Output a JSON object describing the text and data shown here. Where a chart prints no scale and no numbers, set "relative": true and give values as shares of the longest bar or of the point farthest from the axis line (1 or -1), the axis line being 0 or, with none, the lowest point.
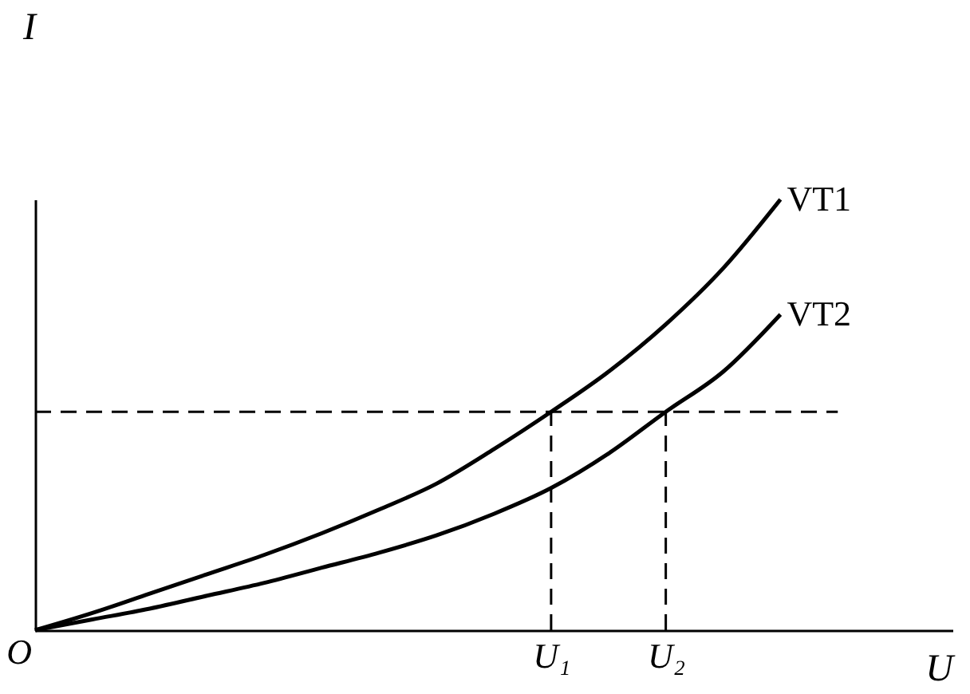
{
  "chart_data": {
    "type": "line",
    "relative": true,
    "xlabel": "U",
    "ylabel": "I",
    "annotations": [
      "O"
    ],
    "categories": [
      null,
      null,
      null,
      null,
      null,
      null,
      null,
      null,
      null,
      "U₁",
      null,
      "U₂",
      null,
      null,
      null,
      null,
      null
    ],
    "series": [
      {
        "name": "VT1",
        "color": "#000000",
        "values": [
          0,
          0.04,
          0.085,
          0.13,
          0.175,
          0.225,
          0.28,
          0.34,
          0.42,
          0.507,
          0.6,
          0.71,
          0.84,
          1,
          null,
          null,
          null
        ]
      },
      {
        "name": "VT2",
        "color": "#000000",
        "values": [
          0,
          0.025,
          0.05,
          0.08,
          0.11,
          0.145,
          0.18,
          0.22,
          0.27,
          0.33,
          0.41,
          0.507,
          0.6,
          0.733,
          null,
          null,
          null
        ]
      }
    ],
    "ref_lines": [
      {
        "axis": "y",
        "value": 0.507,
        "line_style": "dashed"
      },
      {
        "axis": "x",
        "value": "U₁",
        "line_style": "dashed"
      },
      {
        "axis": "x",
        "value": "U₂",
        "line_style": "dashed"
      }
    ],
    "grid": false,
    "legend": false,
    "marker": "none",
    "line_style": "solid"
  }
}
